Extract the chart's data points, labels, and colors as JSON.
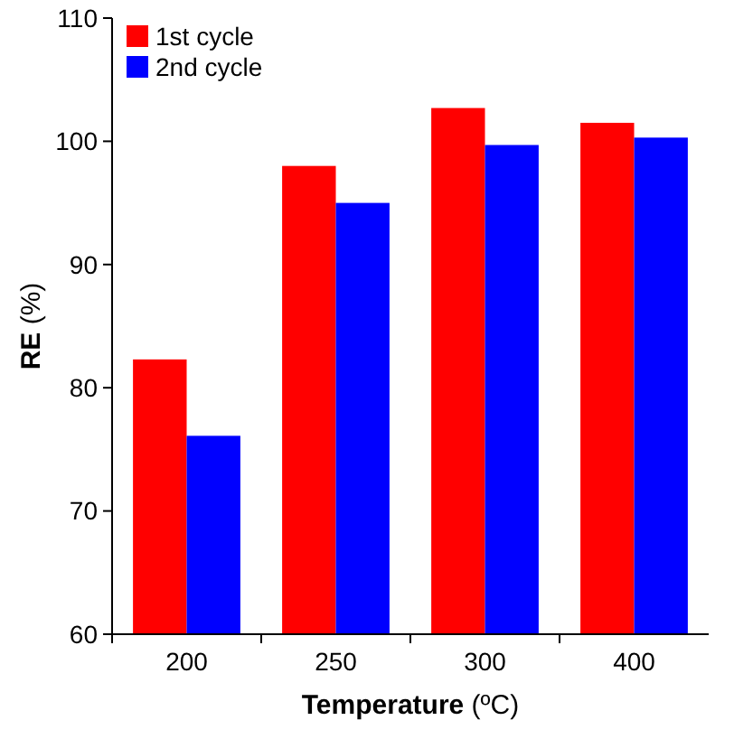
{
  "chart_data": {
    "type": "bar",
    "xlabel": "Temperature (ºC)",
    "ylabel": "RE (%)",
    "categories": [
      "200",
      "250",
      "300",
      "400"
    ],
    "series": [
      {
        "name": "1st cycle",
        "color": "#ff0000",
        "values": [
          82.3,
          98,
          102.7,
          101.5
        ]
      },
      {
        "name": "2nd cycle",
        "color": "#0000ff",
        "values": [
          76.1,
          95,
          99.7,
          100.3
        ]
      }
    ],
    "ylim": [
      60,
      110
    ],
    "yticks": [
      60,
      70,
      80,
      90,
      100,
      110
    ],
    "grid": false,
    "legend": "top left"
  }
}
